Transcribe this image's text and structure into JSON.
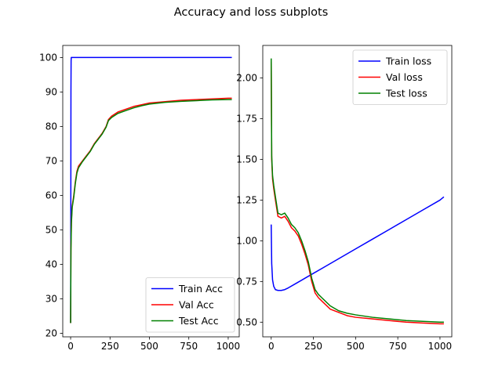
{
  "figure": {
    "suptitle": "Accuracy and loss subplots"
  },
  "chart_data": [
    {
      "type": "line",
      "title": "",
      "xlabel": "",
      "ylabel": "",
      "xlim": [
        -50,
        1070
      ],
      "ylim": [
        19,
        103.5
      ],
      "xticks": [
        0,
        250,
        500,
        750,
        1000
      ],
      "yticks": [
        20,
        30,
        40,
        50,
        60,
        70,
        80,
        90,
        100
      ],
      "grid": false,
      "legend_position": "lower-right",
      "series": [
        {
          "name": "Train Acc",
          "color": "#0000ff",
          "x": [
            0,
            1,
            2,
            3,
            4,
            5,
            20,
            50,
            100,
            200,
            500,
            750,
            1000,
            1023
          ],
          "y": [
            23,
            50,
            90,
            99,
            100,
            100,
            100,
            100,
            100,
            100,
            100,
            100,
            100,
            100
          ]
        },
        {
          "name": "Val Acc",
          "color": "#ff0000",
          "x": [
            0,
            2,
            5,
            10,
            20,
            30,
            40,
            50,
            75,
            100,
            125,
            150,
            175,
            200,
            225,
            240,
            260,
            300,
            350,
            400,
            450,
            500,
            600,
            700,
            800,
            900,
            1000,
            1023
          ],
          "y": [
            23,
            45,
            53,
            57,
            60,
            64,
            67,
            68.5,
            70,
            71.5,
            73,
            75,
            76.5,
            78,
            80,
            82,
            83,
            84.2,
            85,
            85.8,
            86.3,
            86.8,
            87.2,
            87.6,
            87.8,
            88,
            88.2,
            88.2
          ]
        },
        {
          "name": "Test Acc",
          "color": "#008000",
          "x": [
            0,
            2,
            5,
            10,
            20,
            30,
            40,
            50,
            75,
            100,
            125,
            150,
            175,
            200,
            225,
            240,
            260,
            300,
            350,
            400,
            450,
            500,
            600,
            700,
            800,
            900,
            1000,
            1023
          ],
          "y": [
            23,
            44,
            52,
            56.5,
            59.5,
            63.5,
            66.5,
            68,
            69.8,
            71.3,
            72.8,
            74.8,
            76.3,
            77.8,
            79.8,
            81.7,
            82.6,
            83.8,
            84.6,
            85.4,
            86,
            86.5,
            87,
            87.3,
            87.5,
            87.7,
            87.8,
            87.8
          ]
        }
      ]
    },
    {
      "type": "line",
      "title": "",
      "xlabel": "",
      "ylabel": "",
      "xlim": [
        -50,
        1070
      ],
      "ylim": [
        0.41,
        2.2
      ],
      "xticks": [
        0,
        250,
        500,
        750,
        1000
      ],
      "yticks": [
        0.5,
        0.75,
        1.0,
        1.25,
        1.5,
        1.75,
        2.0
      ],
      "yticklabels": [
        "0.50",
        "0.75",
        "1.00",
        "1.25",
        "1.50",
        "1.75",
        "2.00"
      ],
      "grid": false,
      "legend_position": "upper-right",
      "series": [
        {
          "name": "Train loss",
          "color": "#0000ff",
          "x": [
            0,
            3,
            8,
            15,
            25,
            40,
            60,
            80,
            100,
            150,
            200,
            250,
            300,
            400,
            500,
            600,
            700,
            800,
            900,
            1000,
            1023
          ],
          "y": [
            1.1,
            0.86,
            0.76,
            0.72,
            0.7,
            0.695,
            0.695,
            0.7,
            0.71,
            0.74,
            0.77,
            0.8,
            0.83,
            0.89,
            0.95,
            1.01,
            1.07,
            1.13,
            1.19,
            1.25,
            1.27
          ]
        },
        {
          "name": "Val loss",
          "color": "#ff0000",
          "x": [
            0,
            3,
            8,
            15,
            25,
            40,
            60,
            80,
            100,
            120,
            140,
            160,
            180,
            200,
            220,
            240,
            260,
            280,
            300,
            350,
            400,
            450,
            500,
            600,
            700,
            800,
            900,
            1000,
            1023
          ],
          "y": [
            2.1,
            1.5,
            1.38,
            1.32,
            1.25,
            1.15,
            1.14,
            1.15,
            1.12,
            1.08,
            1.06,
            1.03,
            0.98,
            0.92,
            0.85,
            0.75,
            0.68,
            0.65,
            0.63,
            0.58,
            0.56,
            0.54,
            0.53,
            0.52,
            0.51,
            0.5,
            0.495,
            0.49,
            0.49
          ]
        },
        {
          "name": "Test loss",
          "color": "#008000",
          "x": [
            0,
            3,
            8,
            15,
            25,
            40,
            60,
            80,
            100,
            120,
            140,
            160,
            180,
            200,
            220,
            240,
            260,
            280,
            300,
            350,
            400,
            450,
            500,
            600,
            700,
            800,
            900,
            1000,
            1023
          ],
          "y": [
            2.12,
            1.52,
            1.4,
            1.34,
            1.27,
            1.17,
            1.16,
            1.17,
            1.14,
            1.1,
            1.08,
            1.05,
            1.0,
            0.94,
            0.87,
            0.77,
            0.7,
            0.67,
            0.65,
            0.6,
            0.57,
            0.555,
            0.545,
            0.53,
            0.52,
            0.51,
            0.505,
            0.5,
            0.5
          ]
        }
      ]
    }
  ]
}
